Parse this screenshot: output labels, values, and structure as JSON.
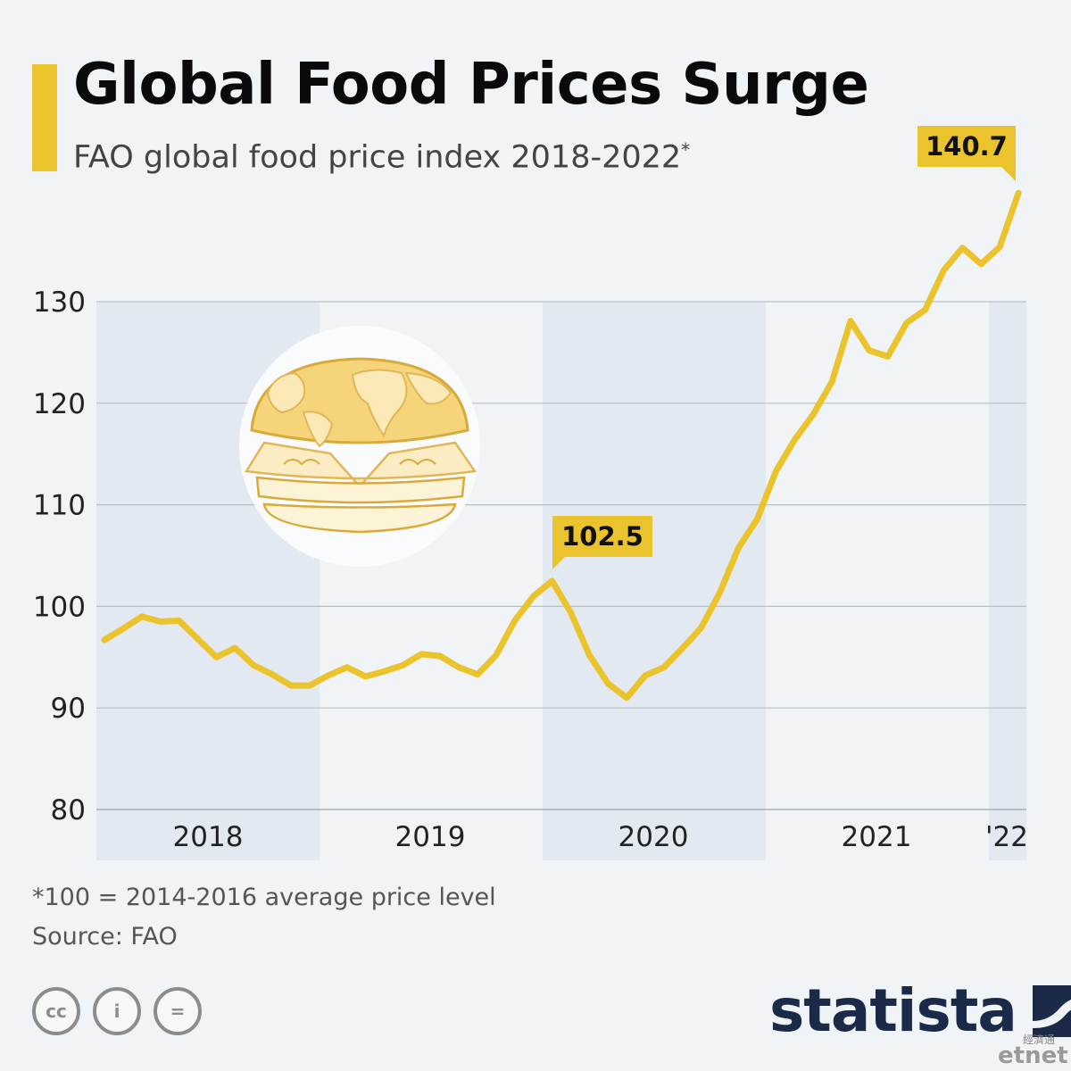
{
  "header": {
    "title": "Global Food Prices Surge",
    "subtitle": "FAO global food price index 2018-2022",
    "subtitle_marker": "*",
    "accent_color": "#eac32d"
  },
  "chart_data": {
    "type": "line",
    "ylim": [
      80,
      140
    ],
    "yticks": [
      80,
      90,
      100,
      110,
      120,
      130
    ],
    "grid": true,
    "year_labels": [
      "2018",
      "2019",
      "2020",
      "2021",
      "'22"
    ],
    "line_color": "#eac32d",
    "band_color": "#e3e9f0",
    "series": [
      {
        "values": [
          96.7,
          97.8,
          99.0,
          98.5,
          98.6,
          96.8,
          95.0,
          95.9,
          94.2,
          93.3,
          92.2,
          92.2,
          93.2,
          94.0,
          93.1,
          93.6,
          94.2,
          95.3,
          95.1,
          94.0,
          93.3,
          95.2,
          98.6,
          101.0,
          102.5,
          99.4,
          95.2,
          92.4,
          91.0,
          93.2,
          94.0,
          95.9,
          97.9,
          101.4,
          105.8,
          108.6,
          113.3,
          116.4,
          118.9,
          122.1,
          128.1,
          125.2,
          124.6,
          127.9,
          129.2,
          133.1,
          135.3,
          133.7,
          135.4,
          140.7
        ]
      }
    ],
    "annotations": [
      {
        "label": "102.5",
        "index": 24
      },
      {
        "label": "140.7",
        "index": 49
      }
    ]
  },
  "footer": {
    "footnote": "*100 = 2014-2016 average price level",
    "source": "Source: FAO",
    "cc_labels": [
      "cc",
      "i",
      "="
    ],
    "brand": "statista",
    "brand_color": "#1a2a48",
    "watermark_cn": "經濟通",
    "watermark_en": "etnet"
  }
}
